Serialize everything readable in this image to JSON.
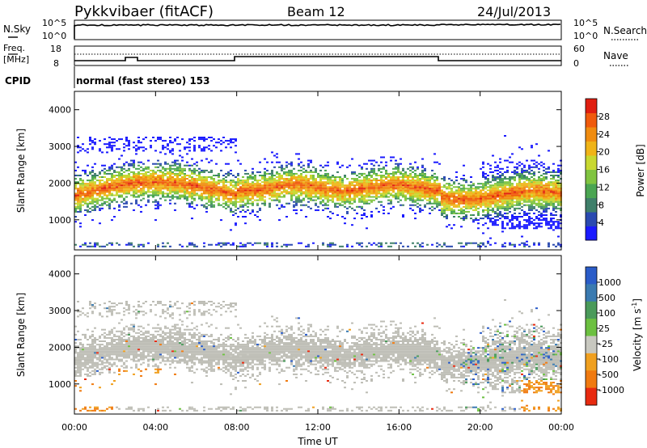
{
  "header": {
    "station": "Pykkvibaer (fitACF)",
    "beam": "Beam 12",
    "date": "24/Jul/2013"
  },
  "strip_labels": {
    "n_sky": "N.Sky",
    "n_search": "N.Search",
    "n_sky_tick_top": "10^5",
    "n_sky_tick_bottom": "10^0",
    "freq": "Freq.",
    "freq_unit": "[MHz]",
    "freq_tick_top": "18",
    "freq_tick_bottom": "8",
    "nave": "Nave",
    "nave_tick_top": "60",
    "nave_tick_bottom": "0",
    "cpid": "CPID",
    "cpid_value": "normal (fast stereo) 153"
  },
  "chart_data": [
    {
      "type": "heatmap",
      "title": "",
      "quantity": "Power",
      "ylabel": "Slant Range [km]",
      "y_ticks": [
        "1000",
        "2000",
        "3000",
        "4000"
      ],
      "ylim": [
        180,
        4500
      ],
      "x_ticks": [
        "00:00",
        "04:00",
        "08:00",
        "12:00",
        "16:00",
        "20:00",
        "00:00"
      ],
      "xlim_hours": [
        0,
        24
      ],
      "colorbar": {
        "label": "Power [dB]",
        "ticks": [
          "4",
          "8",
          "12",
          "16",
          "20",
          "24",
          "28"
        ],
        "colors": [
          "#1a1aff",
          "#2a4ab0",
          "#3f7f6a",
          "#4aa552",
          "#80c440",
          "#c8d830",
          "#f0b418",
          "#f08c10",
          "#f05a0c",
          "#e01e10"
        ]
      },
      "echo_band_description": [
        {
          "x_range": [
            "00:00",
            "08:00"
          ],
          "core_range_km": [
            1450,
            2150
          ],
          "peak_power_db": 28
        },
        {
          "x_range": [
            "08:00",
            "18:00"
          ],
          "core_range_km": [
            1650,
            2100
          ],
          "peak_power_db": 24
        },
        {
          "x_range": [
            "18:00",
            "24:00"
          ],
          "core_range_km": [
            1400,
            2000
          ],
          "peak_power_db": 24
        }
      ]
    },
    {
      "type": "heatmap",
      "title": "",
      "quantity": "Velocity",
      "ylabel": "Slant Range [km]",
      "y_ticks": [
        "1000",
        "2000",
        "3000",
        "4000"
      ],
      "ylim": [
        180,
        4500
      ],
      "x_ticks": [
        "00:00",
        "04:00",
        "08:00",
        "12:00",
        "16:00",
        "20:00",
        "00:00"
      ],
      "xlim_hours": [
        0,
        24
      ],
      "xlabel": "Time UT",
      "colorbar": {
        "label": "Velocity [m s^-1]",
        "ticks": [
          "1000",
          "500",
          "100",
          "25",
          "-25",
          "-100",
          "-500",
          "-1000"
        ],
        "colors": [
          "#2a5cc8",
          "#3a7ab0",
          "#4a9a5a",
          "#6cc040",
          "#c8c8c0",
          "#f0a020",
          "#f07a10",
          "#e82a10"
        ]
      },
      "dominant_value_description": "mostly ground scatter (grey, -25 to 25 m/s) with orange negative velocities near 1000 km around 00:00-04:00 and late evening"
    }
  ],
  "colors": {
    "ground_scatter": "#bdbdb5",
    "scatter_blue": "#1e3cc8"
  }
}
